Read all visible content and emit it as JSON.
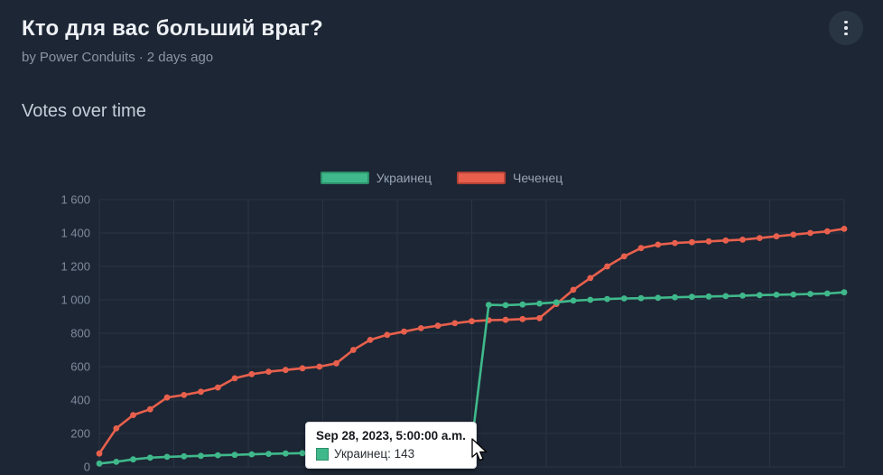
{
  "theme": {
    "page_bg": "#1d2634",
    "title_color": "#eef2f7",
    "subtitle_color": "#8a95a5",
    "section_title_color": "#c5cfdb",
    "legend_label_color": "#98a4b5",
    "tick_label_color": "#7f8b9d",
    "grid_color": "#2a3443",
    "menu_button_bg": "#2a3543",
    "tooltip_bg": "#ffffff"
  },
  "header": {
    "title": "Кто для вас больший враг?",
    "byline_prefix": "by",
    "author": "Power Conduits",
    "separator": "·",
    "time_ago": "2 days ago",
    "menu_icon": "vertical-ellipsis-icon"
  },
  "section": {
    "title": "Votes over time"
  },
  "chart_data": {
    "type": "line",
    "title": "Votes over time",
    "xlabel": "",
    "ylabel": "",
    "ylim": [
      0,
      1600
    ],
    "grid": true,
    "legend_position": "top",
    "y_ticks": [
      0,
      200,
      400,
      600,
      800,
      1000,
      1200,
      1400,
      1600
    ],
    "y_tick_labels": [
      "0",
      "200",
      "400",
      "600",
      "800",
      "1 000",
      "1 200",
      "1 400",
      "1 600"
    ],
    "series": [
      {
        "name": "Украинец",
        "color": "#3fb98b",
        "border_color": "#2d8f69",
        "values": [
          20,
          30,
          45,
          55,
          60,
          63,
          66,
          70,
          72,
          75,
          78,
          80,
          82,
          85,
          88,
          90,
          95,
          100,
          105,
          110,
          118,
          128,
          143,
          970,
          968,
          972,
          978,
          985,
          995,
          1000,
          1005,
          1008,
          1010,
          1012,
          1015,
          1018,
          1020,
          1022,
          1025,
          1028,
          1030,
          1032,
          1035,
          1038,
          1045
        ]
      },
      {
        "name": "Чеченец",
        "color": "#e8604d",
        "border_color": "#b44236",
        "values": [
          80,
          230,
          310,
          345,
          415,
          430,
          450,
          475,
          530,
          555,
          570,
          580,
          590,
          600,
          620,
          700,
          760,
          790,
          810,
          830,
          845,
          860,
          872,
          878,
          880,
          885,
          890,
          975,
          1060,
          1130,
          1200,
          1260,
          1310,
          1330,
          1340,
          1345,
          1350,
          1355,
          1360,
          1370,
          1380,
          1390,
          1400,
          1410,
          1425
        ]
      }
    ],
    "highlight": {
      "series": "Украинец",
      "point_index": 22,
      "date": "Sep 28, 2023, 5:00:00 a.m.",
      "value": 143
    }
  },
  "tooltip": {
    "date": "Sep 28, 2023, 5:00:00 a.m.",
    "label": "Украинец: 143",
    "swatch_color": "#3fb98b",
    "swatch_border_color": "#2d8f69"
  }
}
